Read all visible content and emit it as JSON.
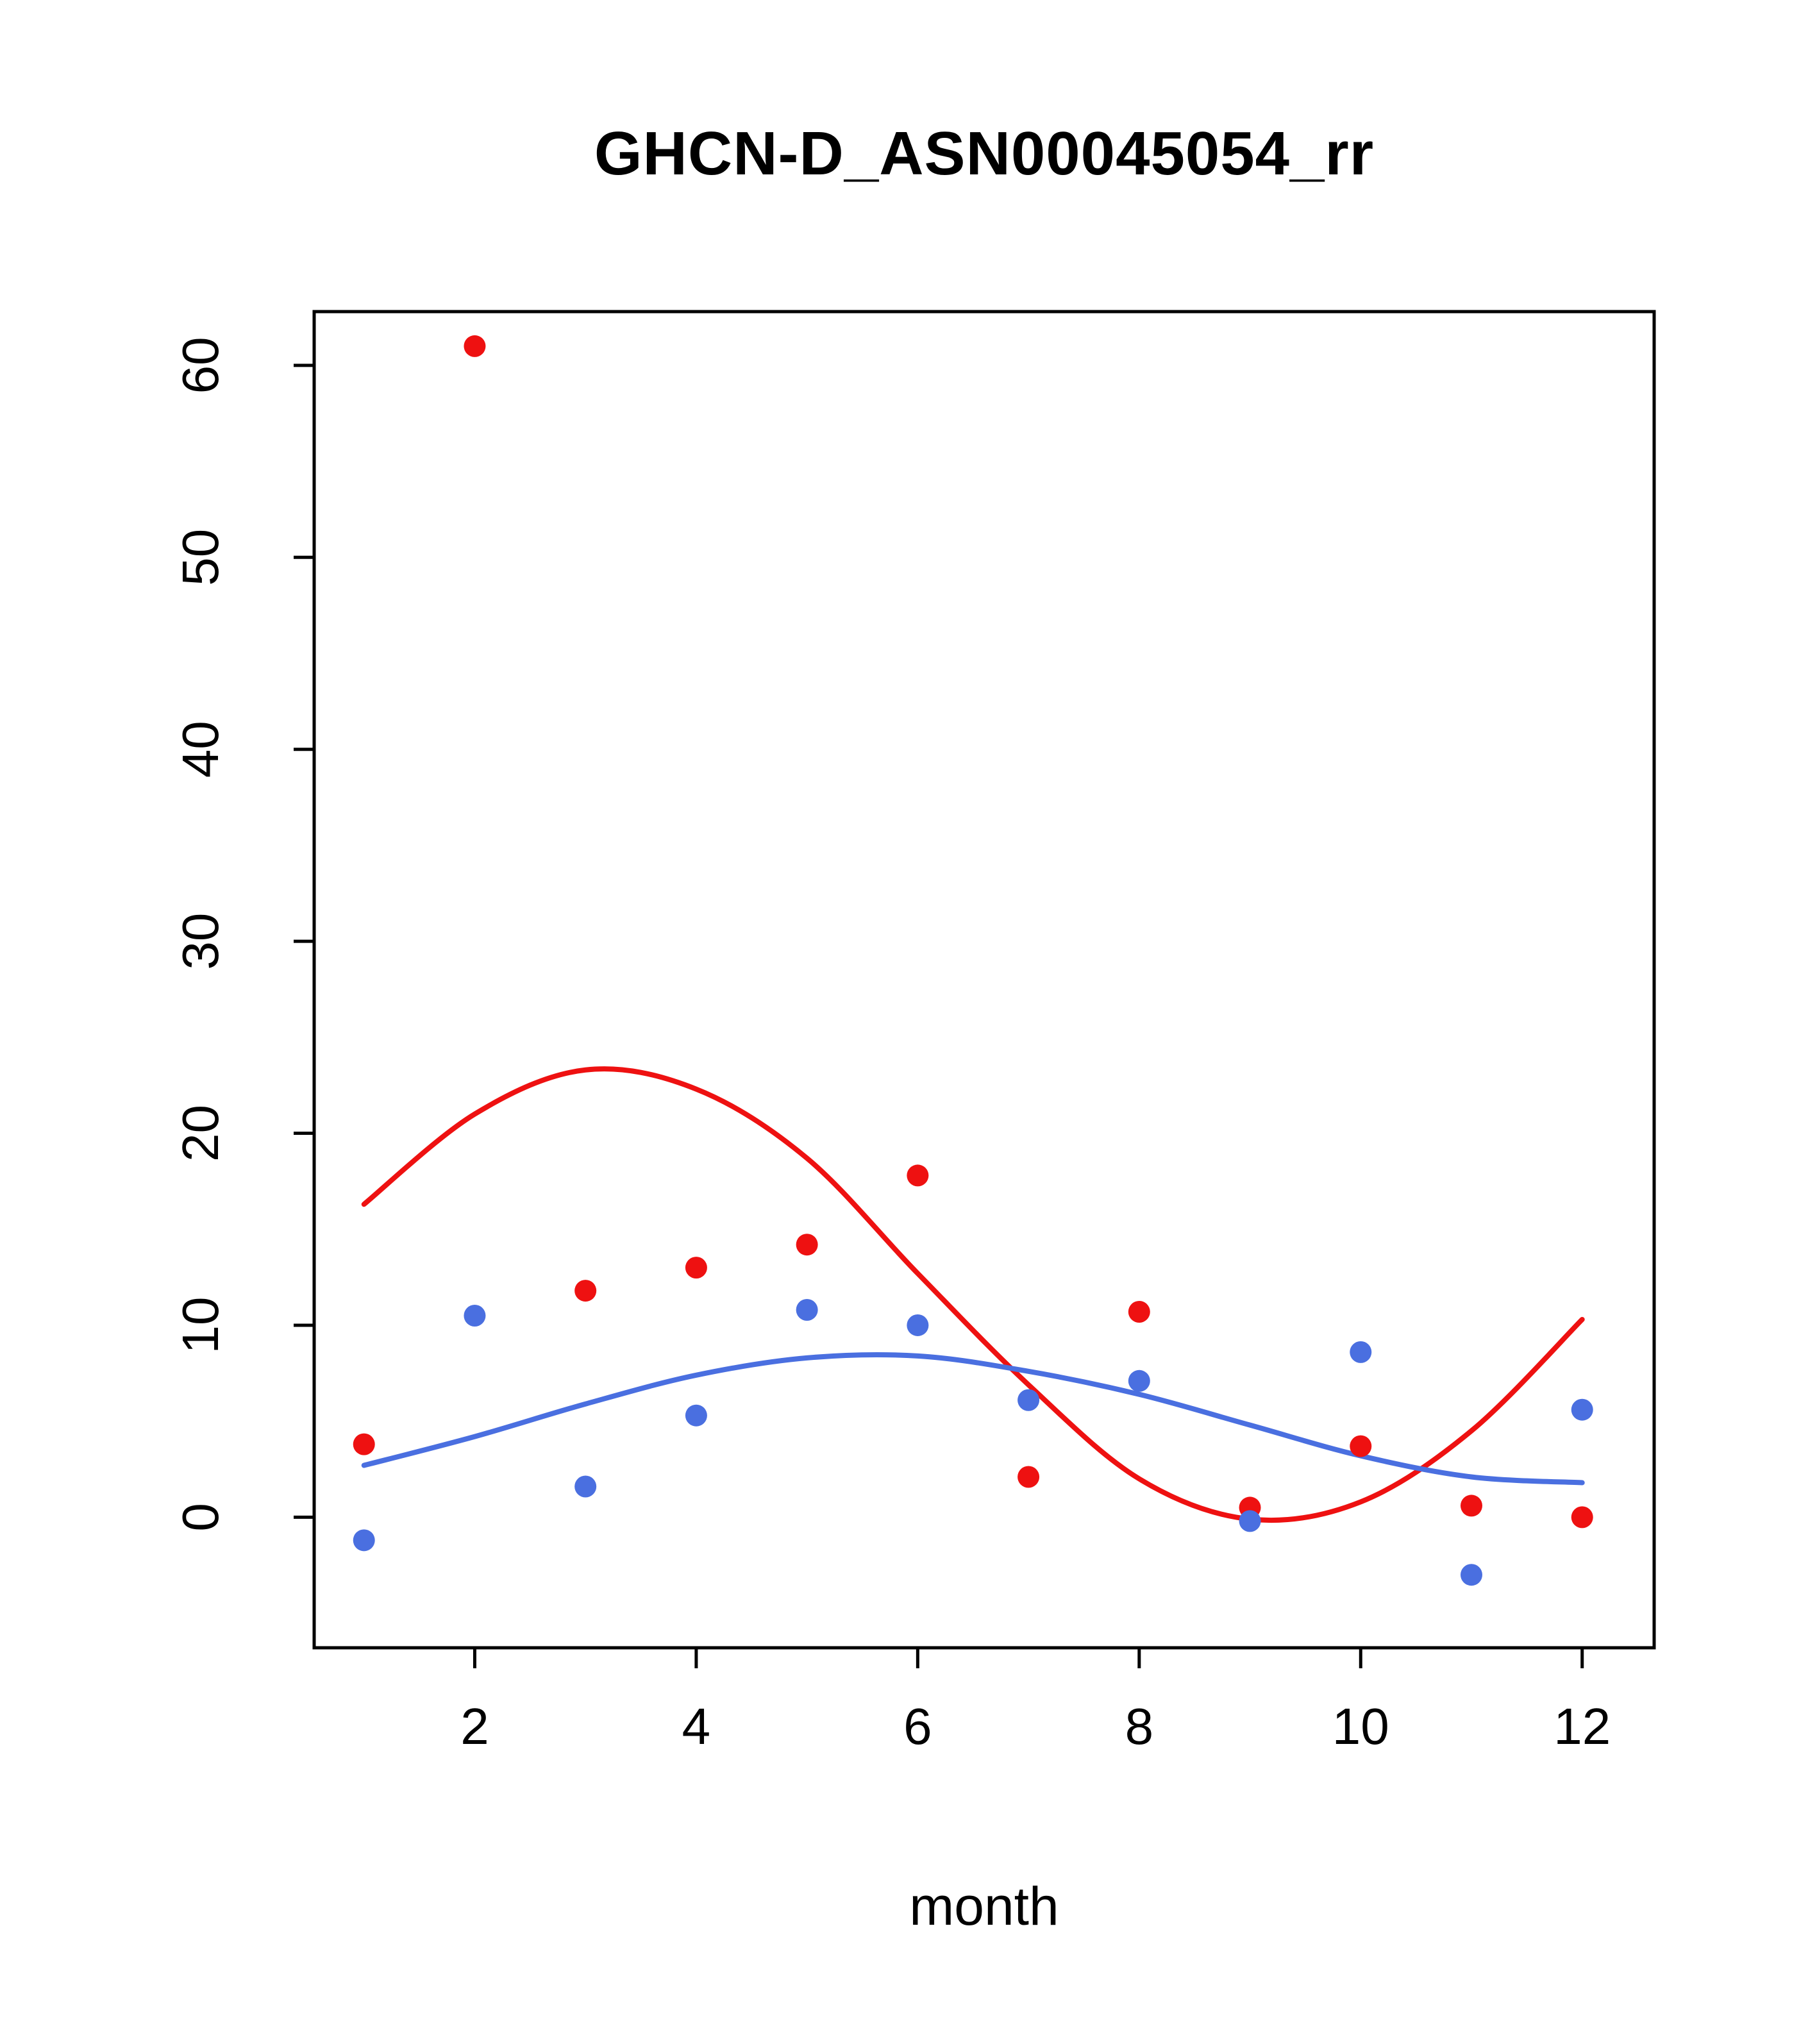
{
  "chart_data": {
    "type": "scatter",
    "title": "GHCN-D_ASN00045054_rr",
    "xlabel": "month",
    "ylabel": "",
    "xlim": [
      0.55,
      12.65
    ],
    "ylim": [
      -6.8,
      62.8
    ],
    "x_ticks": [
      2,
      4,
      6,
      8,
      10,
      12
    ],
    "y_ticks": [
      0,
      10,
      20,
      30,
      40,
      50,
      60
    ],
    "grid": false,
    "legend": "none",
    "x": [
      1,
      2,
      3,
      4,
      5,
      6,
      7,
      8,
      9,
      10,
      11,
      12
    ],
    "colors": {
      "red": "#ee1111",
      "blue": "#4a6fe0",
      "axis": "#000000",
      "background": "#ffffff"
    },
    "series": [
      {
        "name": "red-points",
        "kind": "points",
        "color_key": "red",
        "values": [
          3.8,
          61.0,
          11.8,
          13.0,
          14.2,
          17.8,
          2.1,
          10.7,
          0.5,
          3.7,
          0.6,
          0.0
        ]
      },
      {
        "name": "blue-points",
        "kind": "points",
        "color_key": "blue",
        "values": [
          -1.2,
          10.5,
          1.6,
          5.3,
          10.8,
          10.0,
          6.1,
          7.1,
          -0.2,
          8.6,
          -3.0,
          5.6
        ]
      },
      {
        "name": "red-smooth-line",
        "kind": "line",
        "color_key": "red",
        "values": [
          16.3,
          21.0,
          23.3,
          22.3,
          18.7,
          12.7,
          6.9,
          2.0,
          -0.1,
          0.8,
          4.5,
          10.3
        ]
      },
      {
        "name": "blue-smooth-line",
        "kind": "line",
        "color_key": "blue",
        "values": [
          2.7,
          4.2,
          5.9,
          7.4,
          8.3,
          8.4,
          7.6,
          6.4,
          4.8,
          3.2,
          2.1,
          1.8
        ]
      }
    ]
  }
}
